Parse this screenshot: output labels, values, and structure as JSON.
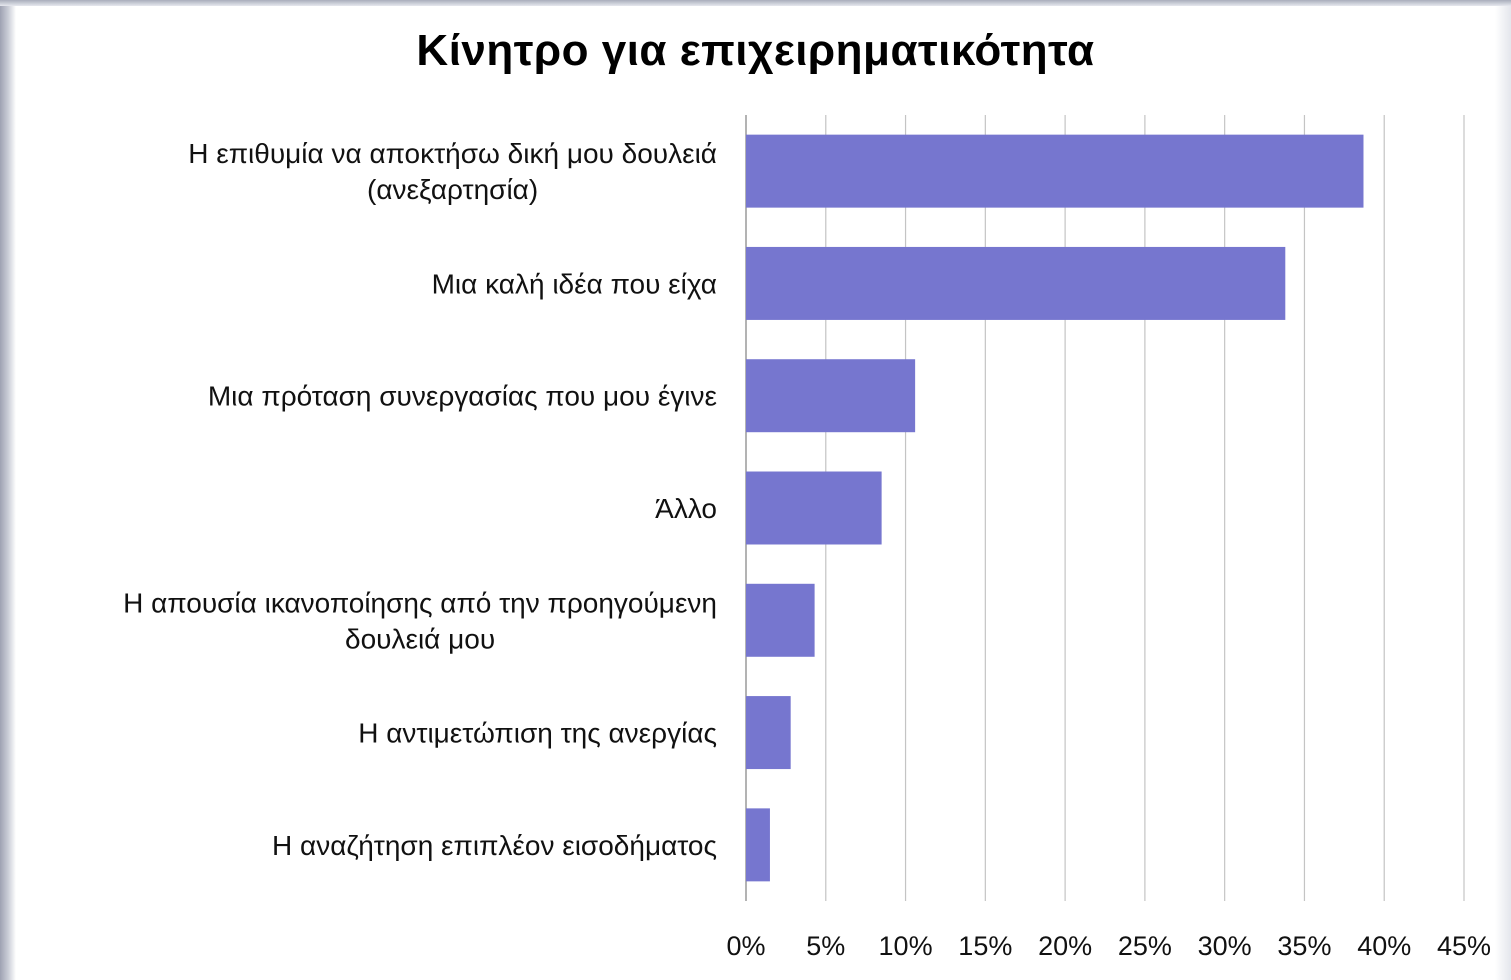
{
  "chart_data": {
    "type": "bar",
    "orientation": "horizontal",
    "title": "Κίνητρο για επιχειρηματικότητα",
    "categories": [
      [
        "Η επιθυμία να αποκτήσω δική μου δουλειά",
        "(ανεξαρτησία)"
      ],
      [
        "Μια καλή ιδέα που είχα"
      ],
      [
        "Μια πρόταση συνεργασίας που μου έγινε"
      ],
      [
        "Άλλο"
      ],
      [
        "Η απουσία ικανοποίησης από την προηγούμενη",
        "δουλειά μου"
      ],
      [
        "Η αντιμετώπιση της ανεργίας"
      ],
      [
        "Η αναζήτηση επιπλέον εισοδήματος"
      ]
    ],
    "values": [
      38.7,
      33.8,
      10.6,
      8.5,
      4.3,
      2.8,
      1.5
    ],
    "xlim": [
      0,
      45
    ],
    "x_ticks": [
      "0%",
      "5%",
      "10%",
      "15%",
      "20%",
      "25%",
      "30%",
      "35%",
      "40%",
      "45%"
    ],
    "bar_color": "#7676cf",
    "grid": "vertical"
  }
}
